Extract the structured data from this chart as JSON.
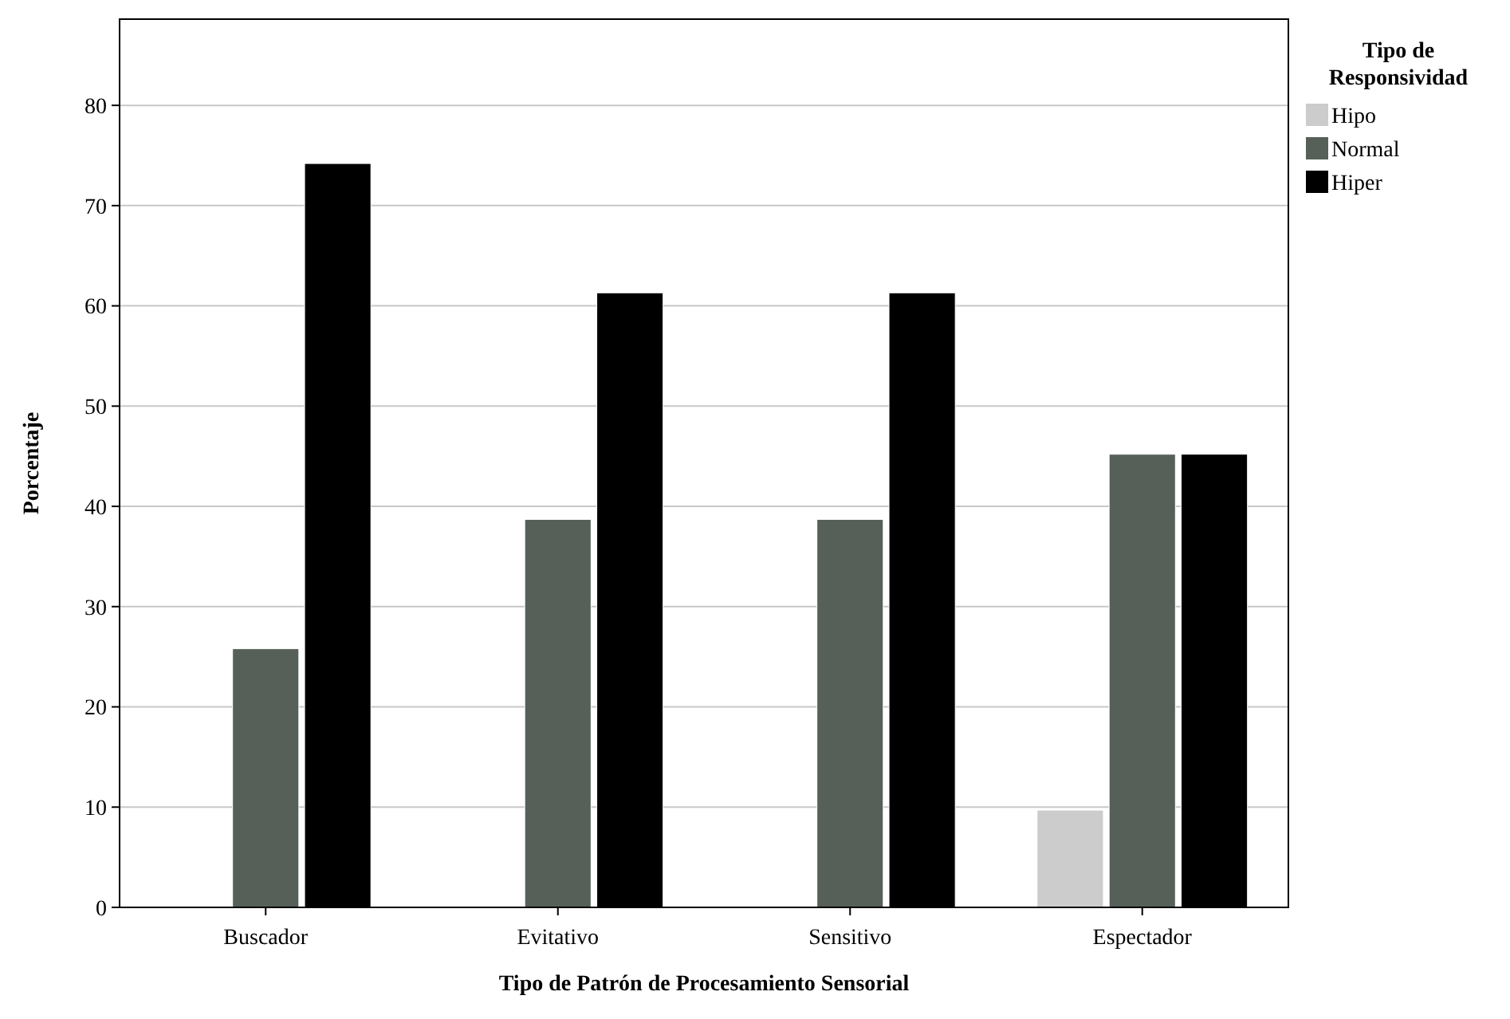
{
  "chart_data": {
    "type": "bar",
    "xlabel": "Tipo de Patrón de Procesamiento Sensorial",
    "ylabel": "Porcentaje",
    "legend_title": "Tipo de Responsividad",
    "categories": [
      "Buscador",
      "Evitativo",
      "Sensitivo",
      "Espectador"
    ],
    "series": [
      {
        "name": "Hipo",
        "color": "#cccccc",
        "values": [
          null,
          null,
          null,
          9.7
        ]
      },
      {
        "name": "Normal",
        "color": "#566059",
        "values": [
          25.8,
          38.7,
          38.7,
          45.2
        ]
      },
      {
        "name": "Hiper",
        "color": "#000000",
        "values": [
          74.2,
          61.3,
          61.3,
          45.2
        ]
      }
    ],
    "ylim": [
      0,
      88.6
    ],
    "yticks": [
      0,
      10,
      20,
      30,
      40,
      50,
      60,
      70,
      80
    ],
    "grid": "y",
    "legend": "top right"
  }
}
